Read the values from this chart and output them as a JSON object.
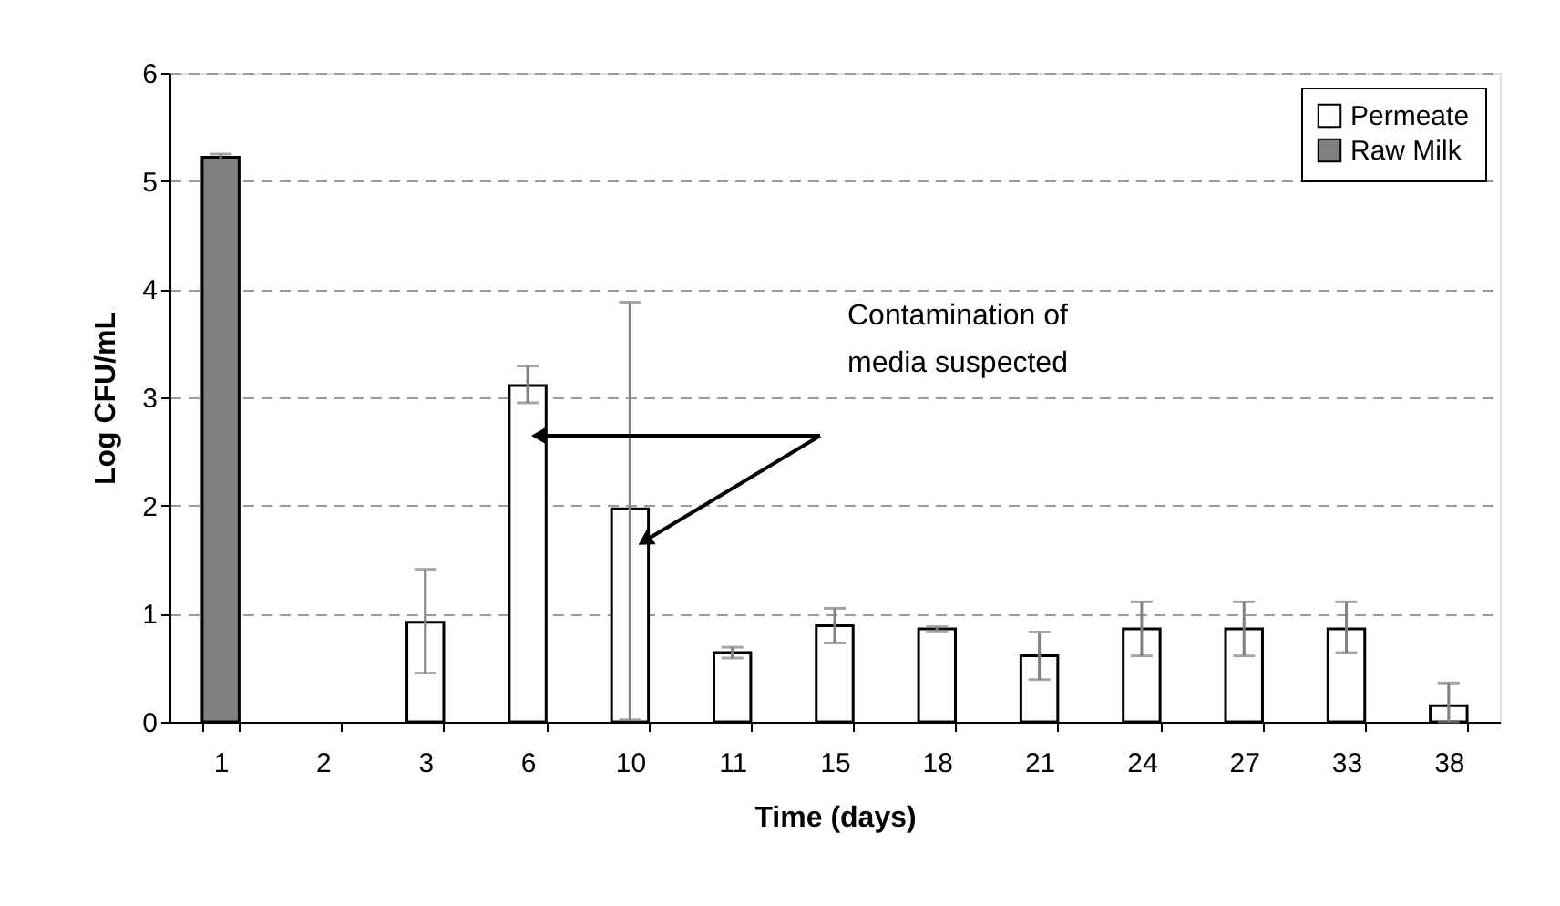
{
  "chart_data": {
    "type": "bar",
    "xlabel": "Time (days)",
    "ylabel": "Log CFU/mL",
    "categories": [
      "1",
      "2",
      "3",
      "6",
      "10",
      "11",
      "15",
      "18",
      "21",
      "24",
      "27",
      "33",
      "38"
    ],
    "series": [
      {
        "name": "Permeate",
        "color": "#ffffff",
        "values": [
          null,
          0,
          0.92,
          3.11,
          1.97,
          0.64,
          0.89,
          0.86,
          0.61,
          0.86,
          0.86,
          0.86,
          0.15
        ],
        "errors": [
          null,
          null,
          [
            0.45,
            1.41
          ],
          [
            2.95,
            3.29
          ],
          [
            0.02,
            3.88
          ],
          0.05,
          [
            0.73,
            1.05
          ],
          0.02,
          [
            0.39,
            0.83
          ],
          [
            0.61,
            1.11
          ],
          [
            0.61,
            1.11
          ],
          [
            0.64,
            1.11
          ],
          [
            0,
            0.36
          ]
        ]
      },
      {
        "name": "Raw Milk",
        "color": "#808080",
        "values": [
          5.22,
          null,
          null,
          null,
          null,
          null,
          null,
          null,
          null,
          null,
          null,
          null,
          null
        ],
        "errors": [
          0.03,
          null,
          null,
          null,
          null,
          null,
          null,
          null,
          null,
          null,
          null,
          null,
          null
        ]
      }
    ],
    "ylim": [
      0,
      6
    ],
    "yticks": [
      0,
      1,
      2,
      3,
      4,
      5,
      6
    ],
    "grid": "y",
    "legend": "top right",
    "annotations": [
      "Contamination of media suspected"
    ]
  }
}
